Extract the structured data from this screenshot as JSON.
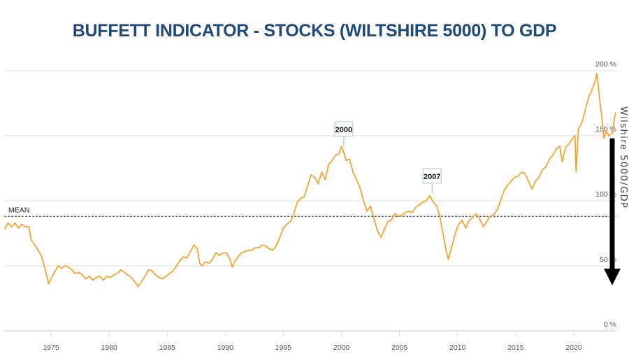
{
  "chart_data": {
    "type": "line",
    "title": "BUFFETT INDICATOR - STOCKS (WILTSHIRE 5000) TO GDP",
    "xlabel": "",
    "ylabel": "Wilshire 5000/GDP",
    "xlim": [
      1971.0,
      2023.6
    ],
    "ylim": [
      0,
      200
    ],
    "grid": true,
    "x_ticks": [
      1975,
      1980,
      1985,
      1990,
      1995,
      2000,
      2005,
      2010,
      2015,
      2020
    ],
    "x_tick_labels": [
      "1975",
      "1980",
      "1985",
      "1990",
      "1995",
      "2000",
      "2005",
      "2010",
      "2015",
      "2020"
    ],
    "y_ticks": [
      0,
      50,
      100,
      150,
      200
    ],
    "y_tick_labels": [
      "0 %",
      "50 %",
      "100 %",
      "150 %",
      "200 %"
    ],
    "mean": {
      "label": "MEAN",
      "value": 88
    },
    "annotations": [
      {
        "label": "2000",
        "x": 2000.2,
        "y": 142
      },
      {
        "label": "2007",
        "x": 2007.8,
        "y": 106
      }
    ],
    "arrow": {
      "direction": "down",
      "from_value": 148,
      "to_value": 35
    },
    "series": [
      {
        "name": "Wilshire 5000/GDP",
        "color": "#f5a431",
        "x": [
          1971.0,
          1971.3,
          1971.6,
          1971.9,
          1972.2,
          1972.5,
          1972.8,
          1973.1,
          1973.3,
          1973.6,
          1973.9,
          1974.2,
          1974.5,
          1974.8,
          1975.0,
          1975.3,
          1975.6,
          1975.9,
          1976.2,
          1976.5,
          1976.8,
          1977.1,
          1977.4,
          1977.7,
          1978.0,
          1978.3,
          1978.6,
          1978.9,
          1979.2,
          1979.5,
          1979.8,
          1980.1,
          1980.4,
          1980.7,
          1981.0,
          1981.3,
          1981.6,
          1981.9,
          1982.2,
          1982.5,
          1982.8,
          1983.1,
          1983.4,
          1983.7,
          1984.0,
          1984.3,
          1984.6,
          1984.9,
          1985.2,
          1985.5,
          1985.8,
          1986.1,
          1986.4,
          1986.7,
          1987.0,
          1987.3,
          1987.6,
          1987.8,
          1988.0,
          1988.3,
          1988.6,
          1988.9,
          1989.2,
          1989.5,
          1989.8,
          1990.1,
          1990.4,
          1990.6,
          1990.8,
          1991.1,
          1991.4,
          1991.7,
          1992.0,
          1992.3,
          1992.6,
          1992.9,
          1993.2,
          1993.5,
          1993.8,
          1994.1,
          1994.4,
          1994.7,
          1995.0,
          1995.3,
          1995.6,
          1995.9,
          1996.2,
          1996.5,
          1996.8,
          1997.1,
          1997.4,
          1997.7,
          1998.0,
          1998.3,
          1998.6,
          1998.9,
          1999.2,
          1999.5,
          1999.8,
          2000.0,
          2000.2,
          2000.4,
          2000.7,
          2001.0,
          2001.3,
          2001.6,
          2001.9,
          2002.2,
          2002.5,
          2002.8,
          2003.1,
          2003.4,
          2003.7,
          2004.0,
          2004.3,
          2004.6,
          2004.9,
          2005.2,
          2005.5,
          2005.8,
          2006.1,
          2006.4,
          2006.7,
          2007.0,
          2007.3,
          2007.6,
          2007.9,
          2008.2,
          2008.5,
          2008.8,
          2009.0,
          2009.2,
          2009.5,
          2009.8,
          2010.1,
          2010.4,
          2010.7,
          2011.0,
          2011.3,
          2011.6,
          2011.9,
          2012.2,
          2012.5,
          2012.8,
          2013.1,
          2013.4,
          2013.7,
          2014.0,
          2014.3,
          2014.6,
          2014.9,
          2015.2,
          2015.5,
          2015.8,
          2016.1,
          2016.4,
          2016.7,
          2017.0,
          2017.3,
          2017.6,
          2017.9,
          2018.2,
          2018.5,
          2018.8,
          2019.0,
          2019.3,
          2019.6,
          2019.9,
          2020.1,
          2020.2,
          2020.4,
          2020.7,
          2021.0,
          2021.3,
          2021.6,
          2021.9,
          2022.0,
          2022.2,
          2022.4,
          2022.6,
          2022.8,
          2023.0,
          2023.3,
          2023.6
        ],
        "y": [
          78,
          83,
          80,
          83,
          79,
          82,
          80,
          80,
          70,
          66,
          62,
          57,
          47,
          36,
          40,
          45,
          50,
          48,
          50,
          49,
          47,
          44,
          45,
          43,
          40,
          42,
          39,
          41,
          42,
          39,
          42,
          41,
          43,
          44,
          47,
          45,
          43,
          41,
          38,
          34,
          38,
          42,
          47,
          46,
          43,
          41,
          40,
          42,
          44,
          46,
          50,
          54,
          57,
          56,
          61,
          66,
          63,
          52,
          50,
          53,
          52,
          55,
          60,
          58,
          60,
          60,
          55,
          49,
          53,
          57,
          60,
          61,
          62,
          62,
          64,
          64,
          66,
          65,
          63,
          62,
          66,
          72,
          79,
          82,
          84,
          90,
          99,
          102,
          103,
          112,
          120,
          118,
          113,
          122,
          116,
          128,
          131,
          135,
          136,
          142,
          137,
          131,
          132,
          122,
          116,
          110,
          100,
          92,
          96,
          86,
          77,
          72,
          78,
          84,
          85,
          90,
          88,
          89,
          91,
          92,
          91,
          95,
          97,
          99,
          100,
          104,
          99,
          96,
          87,
          72,
          62,
          55,
          65,
          75,
          82,
          85,
          79,
          85,
          87,
          90,
          86,
          80,
          84,
          88,
          89,
          93,
          100,
          108,
          112,
          115,
          118,
          119,
          122,
          121,
          115,
          109,
          115,
          118,
          124,
          126,
          132,
          135,
          140,
          142,
          130,
          141,
          144,
          148,
          150,
          122,
          155,
          160,
          170,
          180,
          186,
          194,
          198,
          180,
          165,
          148,
          154,
          150,
          152,
          168
        ]
      }
    ]
  },
  "page": {
    "title": "BUFFETT INDICATOR - STOCKS (WILTSHIRE 5000) TO GDP",
    "side_label": "Wilshire 5000/GDP",
    "mean_label": "MEAN"
  }
}
